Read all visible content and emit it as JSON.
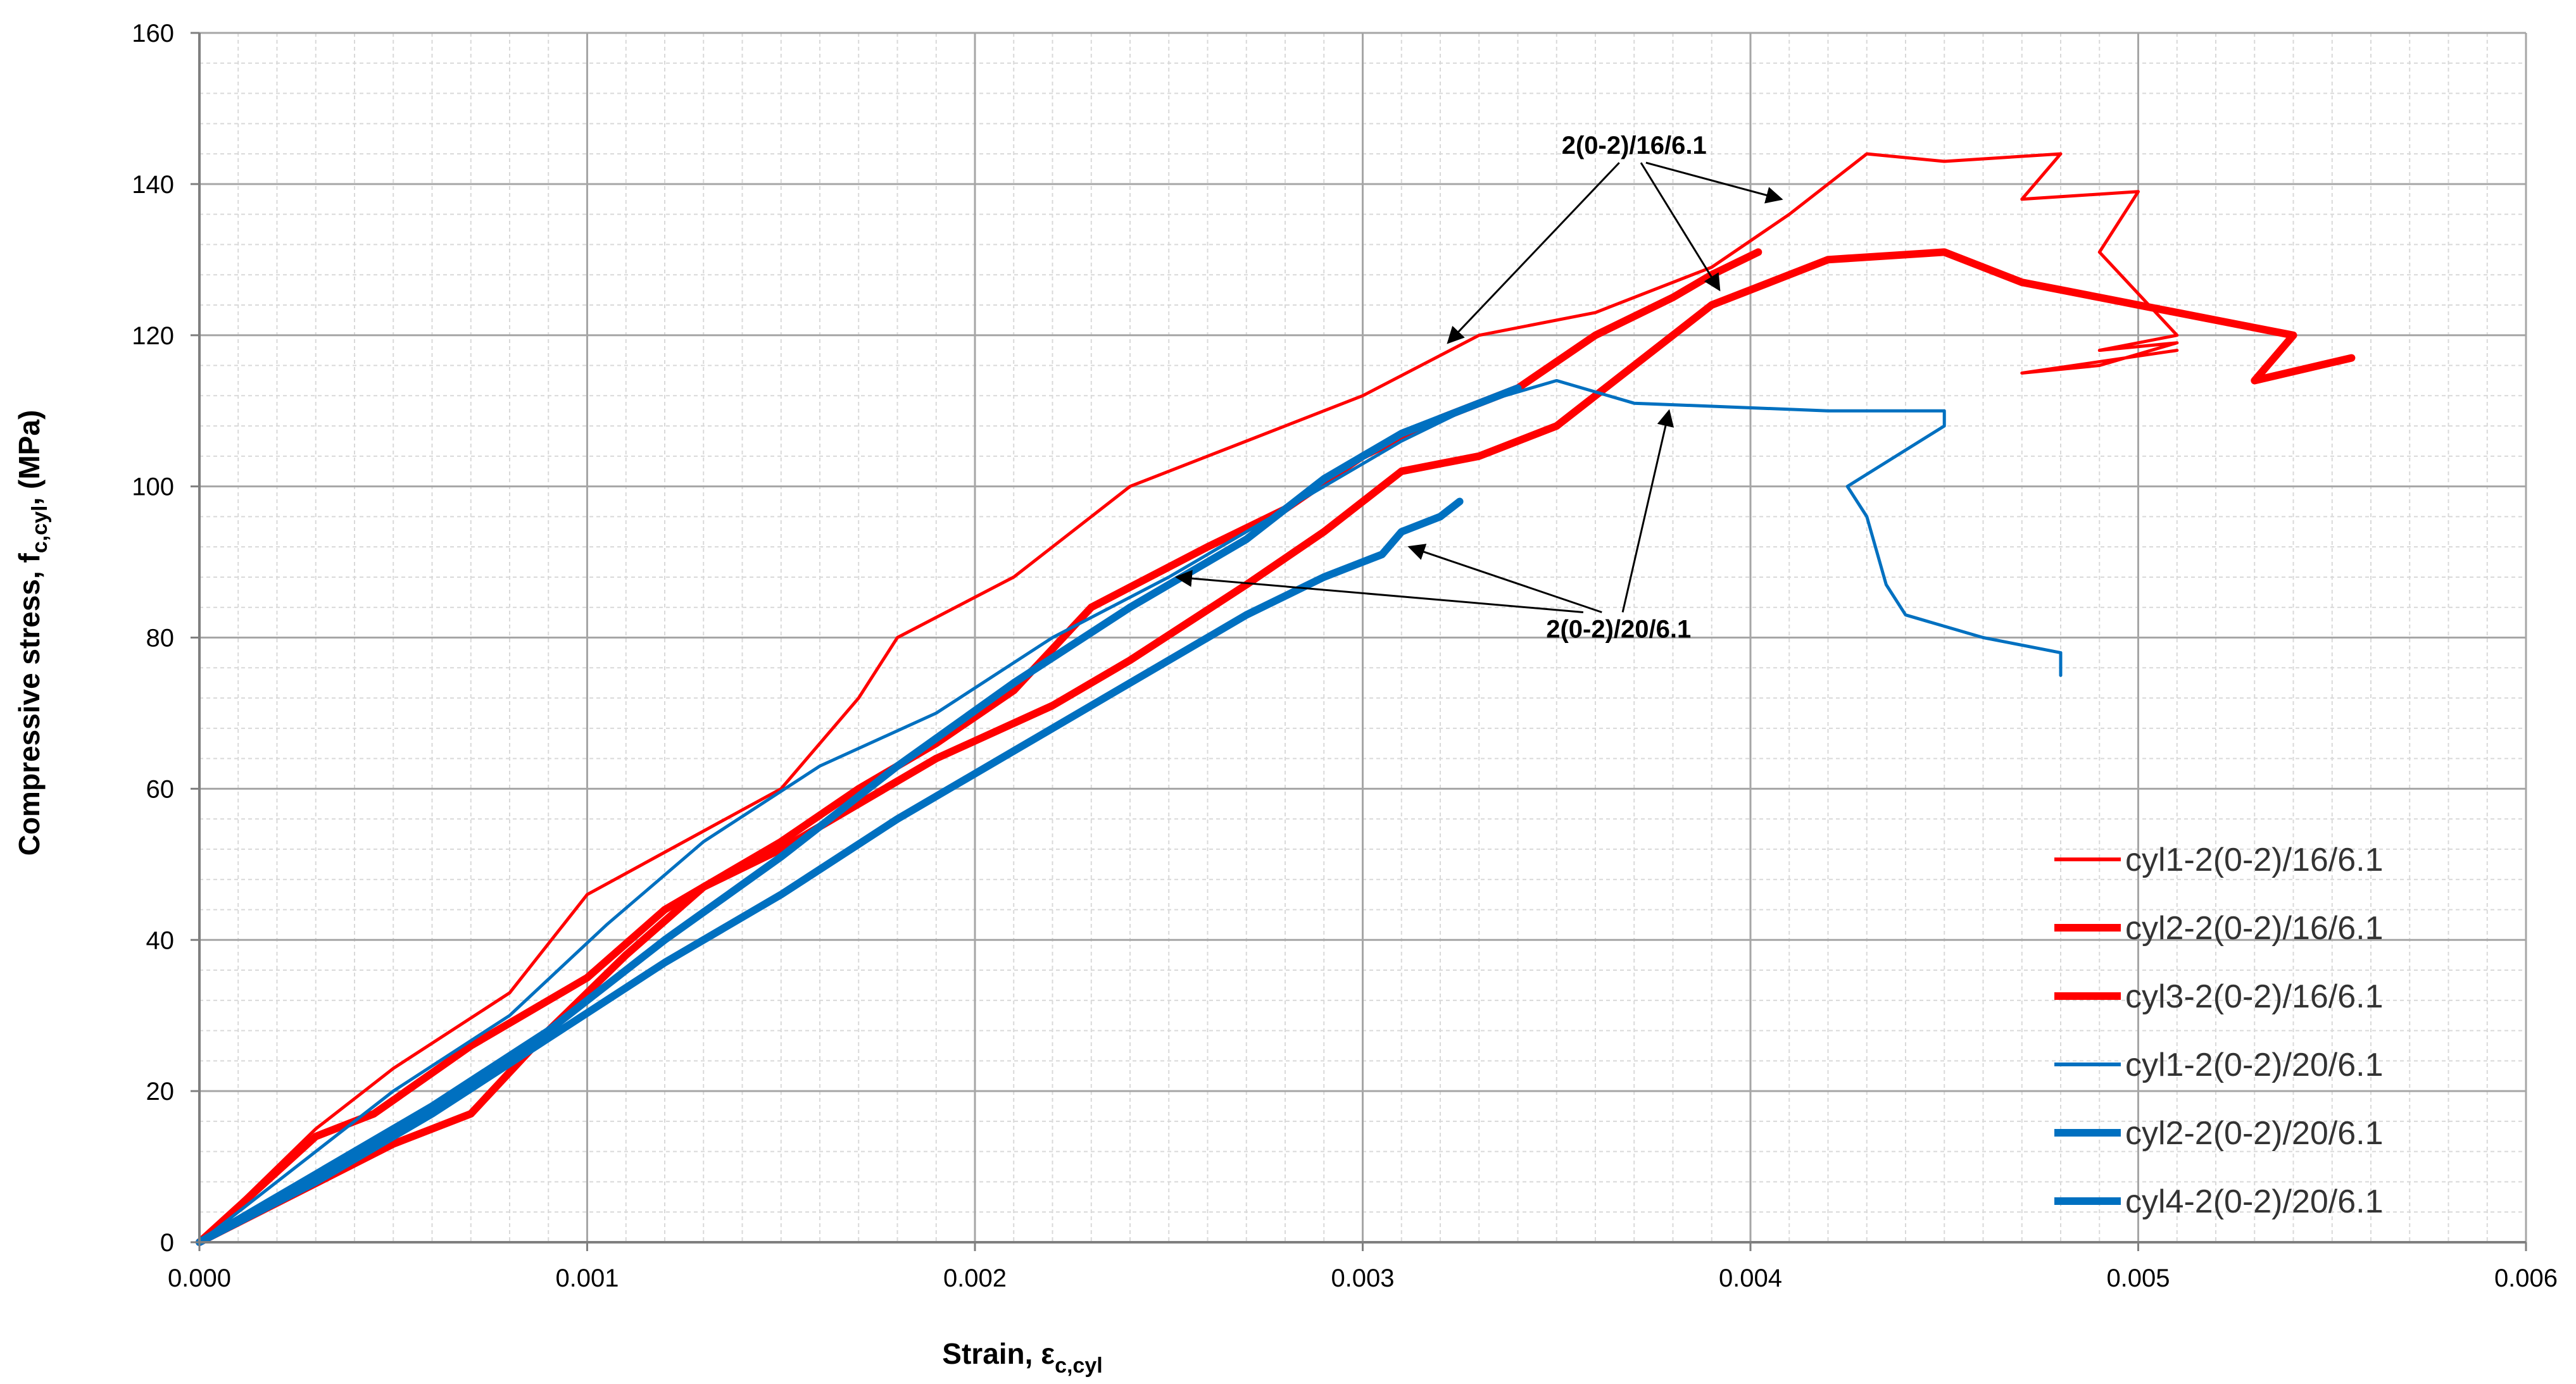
{
  "chart_data": {
    "type": "line",
    "title": "",
    "xlabel": "Strain, ε",
    "xlabel_sub": "c,cyl",
    "ylabel": "Compressive stress, f",
    "ylabel_sub": "c,cyl",
    "ylabel_tail": ", (MPa)",
    "xlim": [
      0,
      0.006
    ],
    "ylim": [
      0,
      160
    ],
    "x_ticks": [
      "0.000",
      "0.001",
      "0.002",
      "0.003",
      "0.004",
      "0.005",
      "0.006"
    ],
    "y_ticks": [
      "0",
      "20",
      "40",
      "60",
      "80",
      "100",
      "120",
      "140",
      "160"
    ],
    "grid": "major and minor",
    "legend_position": "bottom-right",
    "annotations": [
      {
        "text": "2(0-2)/16/6.1",
        "text_at": [
          0.0037,
          144
        ],
        "arrows_to": [
          [
            0.00322,
            119
          ],
          [
            0.00408,
            138
          ],
          [
            0.00392,
            126
          ]
        ]
      },
      {
        "text": "2(0-2)/20/6.1",
        "text_at": [
          0.00366,
          80
        ],
        "arrows_to": [
          [
            0.00252,
            88
          ],
          [
            0.00312,
            92
          ],
          [
            0.00379,
            110
          ]
        ]
      }
    ],
    "series": [
      {
        "name": "cyl1-2(0-2)/16/6.1",
        "color": "#ff0000",
        "style": "thin",
        "x": [
          0,
          0.0003,
          0.0005,
          0.0008,
          0.001,
          0.00125,
          0.0015,
          0.0017,
          0.0018,
          0.0021,
          0.0024,
          0.0027,
          0.003,
          0.0033,
          0.0036,
          0.0039,
          0.0041,
          0.0043,
          0.0045,
          0.0048,
          0.0047,
          0.005,
          0.0049,
          0.0051,
          0.0049,
          0.0051,
          0.0049,
          0.0047,
          0.0051
        ],
        "y": [
          0,
          15,
          23,
          33,
          46,
          53,
          60,
          72,
          80,
          88,
          100,
          106,
          112,
          120,
          123,
          129,
          136,
          144,
          143,
          144,
          138,
          139,
          131,
          120,
          118,
          119,
          116,
          115,
          118
        ]
      },
      {
        "name": "cyl2-2(0-2)/16/6.1",
        "color": "#ff0000",
        "style": "thick",
        "x": [
          0,
          0.0003,
          0.00045,
          0.0007,
          0.001,
          0.0012,
          0.0015,
          0.0017,
          0.0019,
          0.0021,
          0.0023,
          0.0026,
          0.0028,
          0.003,
          0.0032,
          0.0034,
          0.0036,
          0.0038,
          0.0039,
          0.00402
        ],
        "y": [
          0,
          14,
          17,
          26,
          35,
          44,
          53,
          60,
          66,
          73,
          84,
          92,
          97,
          104,
          109,
          113,
          120,
          125,
          128,
          131
        ]
      },
      {
        "name": "cyl3-2(0-2)/16/6.1",
        "color": "#ff0000",
        "style": "thick",
        "x": [
          0,
          0.0005,
          0.0007,
          0.0009,
          0.0011,
          0.0013,
          0.0015,
          0.0017,
          0.0019,
          0.0022,
          0.0024,
          0.0027,
          0.0029,
          0.0031,
          0.0033,
          0.0035,
          0.0037,
          0.0039,
          0.0041,
          0.0042,
          0.0045,
          0.0047,
          0.0049,
          0.0052,
          0.0054,
          0.0053,
          0.00555
        ],
        "y": [
          0,
          13,
          17,
          28,
          38,
          47,
          52,
          58,
          64,
          71,
          77,
          87,
          94,
          102,
          104,
          108,
          116,
          124,
          128,
          130,
          131,
          127,
          125,
          122,
          120,
          114,
          117
        ]
      },
      {
        "name": "cyl1-2(0-2)/20/6.1",
        "color": "#0070c0",
        "style": "thin",
        "x": [
          0,
          0.0005,
          0.0008,
          0.00105,
          0.0013,
          0.0016,
          0.0019,
          0.0022,
          0.0025,
          0.0028,
          0.0031,
          0.0033,
          0.0035,
          0.0037,
          0.0042,
          0.0045,
          0.0045,
          0.00425,
          0.0043,
          0.00435,
          0.0044,
          0.0046,
          0.0048,
          0.0048
        ],
        "y": [
          0,
          20,
          30,
          42,
          53,
          63,
          70,
          80,
          88,
          97,
          106,
          111,
          114,
          111,
          110,
          110,
          108,
          100,
          96,
          87,
          83,
          80,
          78,
          75
        ]
      },
      {
        "name": "cyl2-2(0-2)/20/6.1",
        "color": "#0070c0",
        "style": "thick",
        "x": [
          0,
          0.0003,
          0.0006,
          0.0009,
          0.0012,
          0.0015,
          0.0018,
          0.0021,
          0.0024,
          0.0027,
          0.0029,
          0.0031,
          0.0033,
          0.0034
        ],
        "y": [
          0,
          9,
          18,
          28,
          40,
          51,
          63,
          74,
          84,
          93,
          101,
          107,
          111,
          113
        ]
      },
      {
        "name": "cyl4-2(0-2)/20/6.1",
        "color": "#0070c0",
        "style": "thick",
        "x": [
          0,
          0.0003,
          0.0006,
          0.0009,
          0.0012,
          0.0015,
          0.0018,
          0.0021,
          0.0024,
          0.0027,
          0.0029,
          0.00305,
          0.0031,
          0.0032,
          0.00325
        ],
        "y": [
          0,
          8,
          17,
          27,
          37,
          46,
          56,
          65,
          74,
          83,
          88,
          91,
          94,
          96,
          98
        ]
      }
    ]
  }
}
